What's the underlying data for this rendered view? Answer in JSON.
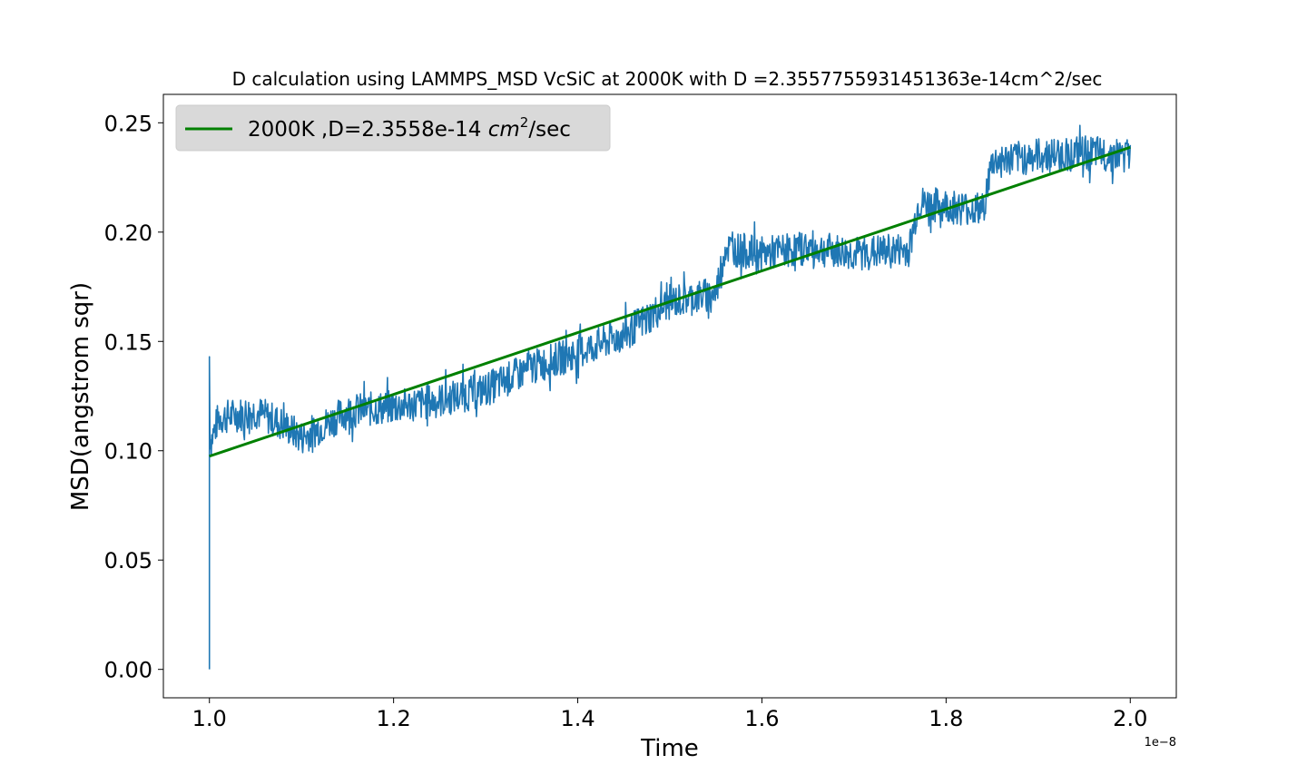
{
  "chart_data": {
    "type": "line",
    "title": "D calculation using LAMMPS_MSD VcSiC at 2000K with D =2.3557755931451363e-14cm^2/sec",
    "xlabel": "Time",
    "ylabel": "MSD(angstrom sqr)",
    "x_offset_label": "1e−8",
    "xlim": [
      0.95,
      2.05
    ],
    "ylim": [
      -0.013,
      0.263
    ],
    "xticks": [
      1.0,
      1.2,
      1.4,
      1.6,
      1.8,
      2.0
    ],
    "xtick_labels": [
      "1.0",
      "1.2",
      "1.4",
      "1.6",
      "1.8",
      "2.0"
    ],
    "yticks": [
      0.0,
      0.05,
      0.1,
      0.15,
      0.2,
      0.25
    ],
    "ytick_labels": [
      "0.00",
      "0.05",
      "0.10",
      "0.15",
      "0.20",
      "0.25"
    ],
    "grid": false,
    "legend_position": "top-left",
    "series": [
      {
        "name": "",
        "role": "msd",
        "color": "#1f77b4",
        "x": [
          1.0,
          1.0,
          1.0,
          1.002,
          1.01,
          1.05,
          1.08,
          1.1,
          1.15,
          1.2,
          1.25,
          1.3,
          1.35,
          1.4,
          1.45,
          1.5,
          1.55,
          1.56,
          1.6,
          1.65,
          1.7,
          1.76,
          1.77,
          1.8,
          1.84,
          1.85,
          1.9,
          1.95,
          2.0
        ],
        "y": [
          0.0,
          0.143,
          0.108,
          0.105,
          0.115,
          0.118,
          0.112,
          0.106,
          0.118,
          0.12,
          0.123,
          0.128,
          0.138,
          0.145,
          0.153,
          0.168,
          0.172,
          0.193,
          0.19,
          0.193,
          0.19,
          0.192,
          0.213,
          0.212,
          0.21,
          0.232,
          0.235,
          0.236,
          0.235
        ],
        "band_halfwidth": 0.008
      },
      {
        "name": "2000K ,D=2.3558e-14 cm²/sec",
        "role": "fit",
        "color": "#008000",
        "x": [
          1.0,
          2.0
        ],
        "y": [
          0.0975,
          0.2388
        ]
      }
    ],
    "legend": {
      "label_prefix": "2000K ,D=2.3558e-14 ",
      "label_math": "cm",
      "label_sup": "2",
      "label_suffix": "/sec"
    }
  }
}
